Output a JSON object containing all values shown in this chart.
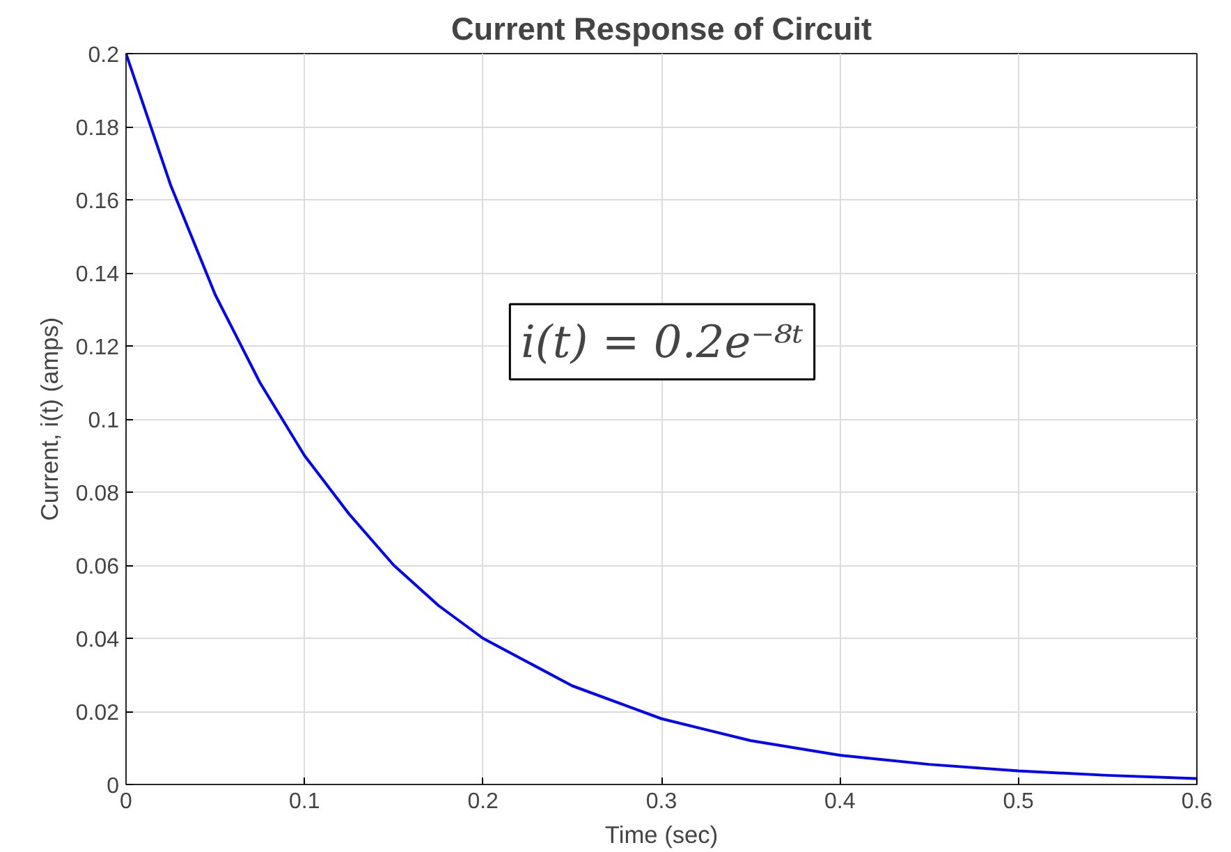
{
  "chart_data": {
    "type": "line",
    "title": "Current Response of Circuit",
    "xlabel": "Time (sec)",
    "ylabel": "Current, i(t) (amps)",
    "x": [
      0,
      0.025,
      0.05,
      0.075,
      0.1,
      0.125,
      0.15,
      0.175,
      0.2,
      0.25,
      0.3,
      0.35,
      0.4,
      0.45,
      0.5,
      0.55,
      0.6
    ],
    "series": [
      {
        "color": "#0000ff",
        "values": [
          0.2,
          0.164,
          0.134,
          0.11,
          0.09,
          0.074,
          0.06,
          0.049,
          0.04,
          0.027,
          0.018,
          0.012,
          0.008,
          0.0055,
          0.0037,
          0.0025,
          0.0016
        ]
      }
    ],
    "annotations": [
      "i(t) = 0.2e⁻⁸ᵗ"
    ],
    "xlim": [
      0,
      0.6
    ],
    "xticks": [
      0,
      0.1,
      0.2,
      0.3,
      0.4,
      0.5,
      0.6
    ],
    "ylim": [
      0,
      0.2
    ],
    "yticks": [
      0,
      0.02,
      0.04,
      0.06,
      0.08,
      0.1,
      0.12,
      0.14,
      0.16,
      0.18,
      0.2
    ],
    "grid": true,
    "line_style": "solid",
    "marker": "none"
  }
}
